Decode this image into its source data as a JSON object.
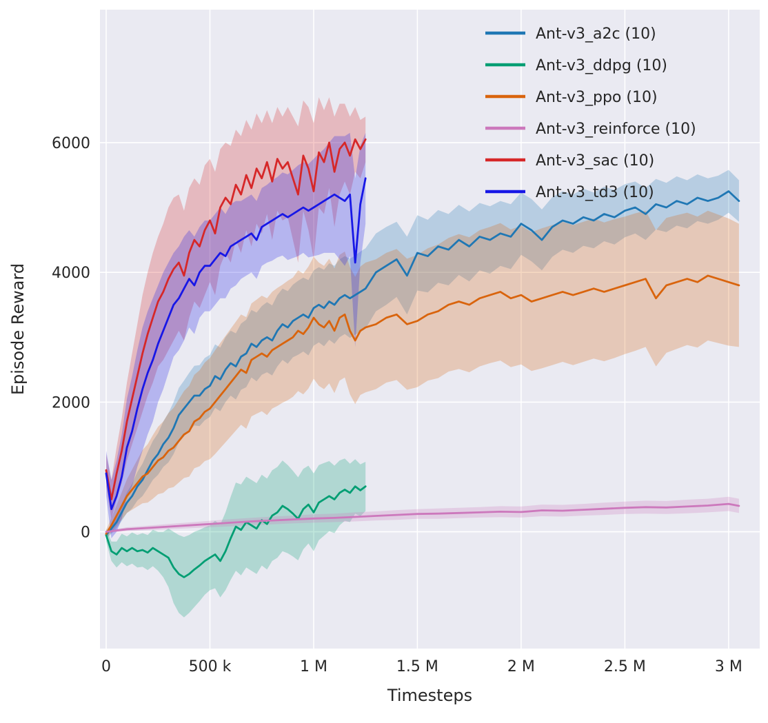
{
  "figure": {
    "background": "#ffffff",
    "axes_background": "#eaeaf2",
    "grid_color": "#ffffff",
    "text_color": "#262626"
  },
  "chart_data": {
    "type": "line",
    "title": "",
    "xlabel": "Timesteps",
    "ylabel": "Episode Reward",
    "x_units": "thousands_of_timesteps",
    "xlim": [
      -30,
      3150
    ],
    "ylim": [
      -1800,
      8050
    ],
    "grid": true,
    "legend_position": "upper right",
    "band_opacity": 0.25,
    "xticks": {
      "values": [
        0,
        500,
        1000,
        1500,
        2000,
        2500,
        3000
      ],
      "labels": [
        "0",
        "500 k",
        "1 M",
        "1.5 M",
        "2 M",
        "2.5 M",
        "3 M"
      ]
    },
    "yticks": {
      "values": [
        0,
        2000,
        4000,
        6000
      ],
      "labels": [
        "0",
        "2000",
        "4000",
        "6000"
      ]
    },
    "series": [
      {
        "id": "a2c",
        "name": "Ant-v3_a2c (10)",
        "color": "#1f77b4",
        "x": [
          0,
          25,
          50,
          75,
          100,
          125,
          150,
          175,
          200,
          225,
          250,
          275,
          300,
          325,
          350,
          375,
          400,
          425,
          450,
          475,
          500,
          525,
          550,
          575,
          600,
          625,
          650,
          675,
          700,
          725,
          750,
          775,
          800,
          825,
          850,
          875,
          900,
          925,
          950,
          975,
          1000,
          1025,
          1050,
          1075,
          1100,
          1125,
          1150,
          1175,
          1200,
          1225,
          1250,
          1300,
          1350,
          1400,
          1450,
          1500,
          1550,
          1600,
          1650,
          1700,
          1750,
          1800,
          1850,
          1900,
          1950,
          2000,
          2050,
          2100,
          2150,
          2200,
          2250,
          2300,
          2350,
          2400,
          2450,
          2500,
          2550,
          2600,
          2650,
          2700,
          2750,
          2800,
          2850,
          2900,
          2950,
          3000,
          3050
        ],
        "y": [
          -50,
          50,
          150,
          300,
          450,
          550,
          700,
          800,
          950,
          1100,
          1200,
          1350,
          1450,
          1600,
          1800,
          1900,
          2000,
          2100,
          2100,
          2200,
          2250,
          2400,
          2350,
          2500,
          2600,
          2550,
          2700,
          2750,
          2900,
          2850,
          2950,
          3000,
          2950,
          3100,
          3200,
          3150,
          3250,
          3300,
          3350,
          3300,
          3450,
          3500,
          3450,
          3550,
          3500,
          3600,
          3650,
          3600,
          3650,
          3700,
          3750,
          4000,
          4100,
          4200,
          3950,
          4300,
          4250,
          4400,
          4350,
          4500,
          4400,
          4550,
          4500,
          4600,
          4550,
          4750,
          4650,
          4500,
          4700,
          4800,
          4750,
          4850,
          4800,
          4900,
          4850,
          4950,
          5000,
          4900,
          5050,
          5000,
          5100,
          5050,
          5150,
          5100,
          5150,
          5250,
          5100
        ],
        "band": [
          60,
          80,
          100,
          130,
          160,
          190,
          220,
          250,
          280,
          300,
          320,
          350,
          380,
          400,
          420,
          430,
          450,
          460,
          470,
          480,
          480,
          490,
          490,
          500,
          500,
          510,
          510,
          520,
          520,
          530,
          530,
          540,
          540,
          550,
          550,
          560,
          560,
          570,
          570,
          580,
          580,
          580,
          590,
          590,
          600,
          600,
          600,
          610,
          610,
          620,
          620,
          600,
          600,
          580,
          600,
          580,
          560,
          560,
          550,
          540,
          540,
          520,
          520,
          500,
          500,
          480,
          480,
          470,
          460,
          450,
          450,
          440,
          430,
          420,
          420,
          410,
          400,
          400,
          390,
          380,
          380,
          370,
          360,
          350,
          340,
          330,
          320
        ]
      },
      {
        "id": "ddpg",
        "name": "Ant-v3_ddpg (10)",
        "color": "#029e73",
        "x": [
          0,
          25,
          50,
          75,
          100,
          125,
          150,
          175,
          200,
          225,
          250,
          275,
          300,
          325,
          350,
          375,
          400,
          425,
          450,
          475,
          500,
          525,
          550,
          575,
          600,
          625,
          650,
          675,
          700,
          725,
          750,
          775,
          800,
          825,
          850,
          875,
          900,
          925,
          950,
          975,
          1000,
          1025,
          1050,
          1075,
          1100,
          1125,
          1150,
          1175,
          1200,
          1225,
          1250
        ],
        "y": [
          -50,
          -300,
          -350,
          -250,
          -300,
          -250,
          -300,
          -280,
          -320,
          -250,
          -300,
          -350,
          -400,
          -550,
          -650,
          -700,
          -650,
          -580,
          -520,
          -450,
          -400,
          -350,
          -450,
          -300,
          -100,
          80,
          30,
          150,
          100,
          50,
          180,
          120,
          250,
          300,
          400,
          350,
          280,
          200,
          350,
          420,
          300,
          450,
          500,
          550,
          500,
          600,
          650,
          600,
          700,
          640,
          700
        ],
        "band": [
          100,
          150,
          200,
          220,
          230,
          240,
          250,
          260,
          270,
          280,
          300,
          350,
          450,
          550,
          600,
          620,
          600,
          580,
          550,
          520,
          500,
          520,
          560,
          600,
          640,
          680,
          700,
          700,
          700,
          700,
          700,
          700,
          700,
          700,
          700,
          680,
          660,
          640,
          620,
          600,
          600,
          580,
          560,
          540,
          520,
          500,
          480,
          450,
          420,
          400,
          380
        ]
      },
      {
        "id": "ppo",
        "name": "Ant-v3_ppo (10)",
        "color": "#d9640d",
        "x": [
          0,
          25,
          50,
          75,
          100,
          125,
          150,
          175,
          200,
          225,
          250,
          275,
          300,
          325,
          350,
          375,
          400,
          425,
          450,
          475,
          500,
          525,
          550,
          575,
          600,
          625,
          650,
          675,
          700,
          725,
          750,
          775,
          800,
          825,
          850,
          875,
          900,
          925,
          950,
          975,
          1000,
          1025,
          1050,
          1075,
          1100,
          1125,
          1150,
          1175,
          1200,
          1225,
          1250,
          1300,
          1350,
          1400,
          1450,
          1500,
          1550,
          1600,
          1650,
          1700,
          1750,
          1800,
          1850,
          1900,
          1950,
          2000,
          2050,
          2100,
          2150,
          2200,
          2250,
          2300,
          2350,
          2400,
          2450,
          2500,
          2550,
          2600,
          2650,
          2700,
          2750,
          2800,
          2850,
          2900,
          2950,
          3000,
          3050
        ],
        "y": [
          -30,
          100,
          250,
          400,
          550,
          650,
          750,
          850,
          900,
          1000,
          1100,
          1150,
          1250,
          1300,
          1400,
          1500,
          1550,
          1700,
          1750,
          1850,
          1900,
          2000,
          2100,
          2200,
          2300,
          2400,
          2500,
          2450,
          2650,
          2700,
          2750,
          2700,
          2800,
          2850,
          2900,
          2950,
          3000,
          3100,
          3050,
          3150,
          3300,
          3200,
          3150,
          3250,
          3100,
          3300,
          3350,
          3100,
          2950,
          3100,
          3150,
          3200,
          3300,
          3350,
          3200,
          3250,
          3350,
          3400,
          3500,
          3550,
          3500,
          3600,
          3650,
          3700,
          3600,
          3650,
          3550,
          3600,
          3650,
          3700,
          3650,
          3700,
          3750,
          3700,
          3750,
          3800,
          3850,
          3900,
          3600,
          3800,
          3850,
          3900,
          3850,
          3950,
          3900,
          3850,
          3800
        ],
        "band": [
          60,
          110,
          160,
          210,
          260,
          310,
          360,
          410,
          450,
          490,
          520,
          550,
          580,
          610,
          640,
          670,
          700,
          720,
          740,
          760,
          780,
          800,
          810,
          820,
          830,
          840,
          850,
          860,
          870,
          880,
          890,
          900,
          900,
          910,
          910,
          920,
          920,
          930,
          930,
          940,
          940,
          950,
          950,
          960,
          960,
          970,
          970,
          980,
          980,
          990,
          1000,
          1000,
          1000,
          1010,
          1010,
          1020,
          1020,
          1030,
          1030,
          1040,
          1040,
          1050,
          1050,
          1060,
          1060,
          1070,
          1070,
          1080,
          1080,
          1080,
          1080,
          1080,
          1080,
          1070,
          1070,
          1060,
          1060,
          1050,
          1050,
          1040,
          1030,
          1020,
          1010,
          1000,
          990,
          980,
          950
        ]
      },
      {
        "id": "reinforce",
        "name": "Ant-v3_reinforce (10)",
        "color": "#cc78bc",
        "x": [
          0,
          100,
          200,
          300,
          400,
          500,
          600,
          700,
          800,
          900,
          1000,
          1100,
          1200,
          1300,
          1400,
          1500,
          1600,
          1700,
          1800,
          1900,
          2000,
          2100,
          2200,
          2300,
          2400,
          2500,
          2600,
          2700,
          2800,
          2900,
          3000,
          3050
        ],
        "y": [
          0,
          40,
          60,
          80,
          100,
          120,
          140,
          160,
          175,
          190,
          205,
          215,
          230,
          245,
          260,
          275,
          280,
          290,
          300,
          310,
          305,
          330,
          325,
          340,
          355,
          370,
          380,
          375,
          390,
          405,
          430,
          400
        ],
        "band": [
          20,
          30,
          35,
          40,
          45,
          50,
          55,
          55,
          60,
          60,
          65,
          65,
          70,
          70,
          75,
          75,
          80,
          80,
          80,
          85,
          85,
          90,
          90,
          90,
          95,
          95,
          100,
          100,
          105,
          105,
          110,
          110
        ]
      },
      {
        "id": "sac",
        "name": "Ant-v3_sac (10)",
        "color": "#d62728",
        "x": [
          0,
          25,
          50,
          75,
          100,
          125,
          150,
          175,
          200,
          225,
          250,
          275,
          300,
          325,
          350,
          375,
          400,
          425,
          450,
          475,
          500,
          525,
          550,
          575,
          600,
          625,
          650,
          675,
          700,
          725,
          750,
          775,
          800,
          825,
          850,
          875,
          900,
          925,
          950,
          975,
          1000,
          1025,
          1050,
          1075,
          1100,
          1125,
          1150,
          1175,
          1200,
          1225,
          1250
        ],
        "y": [
          950,
          500,
          900,
          1250,
          1700,
          2050,
          2400,
          2750,
          3050,
          3300,
          3550,
          3700,
          3900,
          4050,
          4150,
          3950,
          4300,
          4500,
          4400,
          4650,
          4800,
          4600,
          5000,
          5150,
          5050,
          5350,
          5200,
          5500,
          5300,
          5600,
          5450,
          5700,
          5400,
          5750,
          5600,
          5700,
          5450,
          5200,
          5800,
          5600,
          5250,
          5850,
          5700,
          6000,
          5550,
          5900,
          6000,
          5800,
          6050,
          5900,
          6050
        ],
        "band": [
          250,
          300,
          400,
          500,
          600,
          700,
          800,
          900,
          950,
          1000,
          1000,
          1050,
          1100,
          1100,
          1050,
          1000,
          1000,
          950,
          950,
          1000,
          950,
          950,
          900,
          850,
          900,
          850,
          900,
          850,
          900,
          850,
          850,
          800,
          900,
          800,
          800,
          850,
          950,
          1050,
          850,
          950,
          1050,
          850,
          800,
          700,
          850,
          700,
          600,
          600,
          500,
          450,
          350
        ]
      },
      {
        "id": "td3",
        "name": "Ant-v3_td3 (10)",
        "color": "#1717e6",
        "x": [
          0,
          25,
          50,
          75,
          100,
          125,
          150,
          175,
          200,
          225,
          250,
          275,
          300,
          325,
          350,
          375,
          400,
          425,
          450,
          475,
          500,
          525,
          550,
          575,
          600,
          625,
          650,
          675,
          700,
          725,
          750,
          775,
          800,
          825,
          850,
          875,
          900,
          925,
          950,
          975,
          1000,
          1025,
          1050,
          1075,
          1100,
          1125,
          1150,
          1175,
          1200,
          1225,
          1250
        ],
        "y": [
          900,
          350,
          550,
          850,
          1300,
          1550,
          1900,
          2200,
          2450,
          2650,
          2900,
          3100,
          3300,
          3500,
          3600,
          3750,
          3900,
          3800,
          4000,
          4100,
          4100,
          4200,
          4300,
          4250,
          4400,
          4450,
          4500,
          4550,
          4600,
          4500,
          4700,
          4750,
          4800,
          4850,
          4900,
          4850,
          4900,
          4950,
          5000,
          4950,
          5000,
          5050,
          5100,
          5150,
          5200,
          5150,
          5100,
          5200,
          4150,
          5050,
          5450
        ],
        "band": [
          350,
          450,
          550,
          650,
          750,
          850,
          900,
          950,
          950,
          950,
          900,
          900,
          850,
          800,
          800,
          800,
          750,
          750,
          700,
          700,
          700,
          700,
          700,
          650,
          650,
          650,
          600,
          600,
          600,
          600,
          600,
          600,
          620,
          620,
          640,
          660,
          680,
          700,
          700,
          720,
          750,
          780,
          800,
          850,
          900,
          950,
          1000,
          950,
          1300,
          900,
          700
        ]
      }
    ]
  }
}
